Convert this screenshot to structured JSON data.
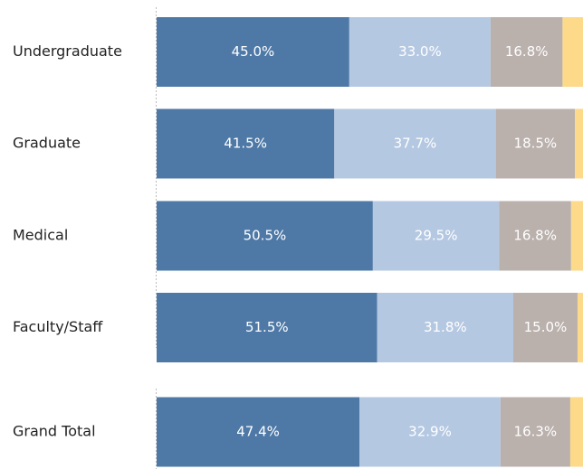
{
  "chart_data": {
    "type": "stacked-bar",
    "categories": [
      "Undergraduate",
      "Graduate",
      "Medical",
      "Faculty/Staff",
      "Grand Total"
    ],
    "xlim": [
      0,
      100
    ],
    "series": [
      {
        "color": "#4e79a7",
        "values": [
          45.0,
          41.5,
          50.5,
          51.5,
          47.4
        ],
        "value_labels": [
          "45.0%",
          "41.5%",
          "50.5%",
          "51.5%",
          "47.4%"
        ]
      },
      {
        "color": "#b5c8e2",
        "values": [
          33.0,
          37.7,
          29.5,
          31.8,
          32.9
        ],
        "value_labels": [
          "33.0%",
          "37.7%",
          "29.5%",
          "31.8%",
          "32.9%"
        ]
      },
      {
        "color": "#bab0ac",
        "values": [
          16.8,
          18.5,
          16.8,
          15.0,
          16.3
        ],
        "value_labels": [
          "16.8%",
          "18.5%",
          "16.8%",
          "15.0%",
          "16.3%"
        ]
      },
      {
        "color": "#fdd98a",
        "values": [
          5.2,
          2.3,
          3.2,
          1.7,
          3.4
        ]
      }
    ]
  }
}
